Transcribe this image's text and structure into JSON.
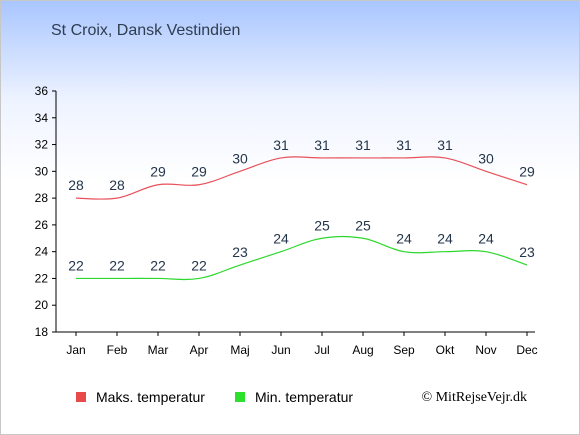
{
  "page": {
    "title": "St Croix, Dansk Vestindien",
    "credit": "© MitRejseVejr.dk"
  },
  "colors": {
    "max_line": "#e8505a",
    "min_line": "#2cd82c",
    "max_swatch": "#e84a4a",
    "min_swatch": "#2ee02e",
    "label_text": "#24364b",
    "axis": "#000000"
  },
  "chart_data": {
    "type": "line",
    "title": "St Croix, Dansk Vestindien",
    "xlabel": "",
    "ylabel": "",
    "categories": [
      "Jan",
      "Feb",
      "Mar",
      "Apr",
      "Maj",
      "Jun",
      "Jul",
      "Aug",
      "Sep",
      "Okt",
      "Nov",
      "Dec"
    ],
    "ylim": [
      18,
      36
    ],
    "yticks": [
      18,
      20,
      22,
      24,
      26,
      28,
      30,
      32,
      34,
      36
    ],
    "grid": false,
    "legend_position": "bottom",
    "series": [
      {
        "name": "Maks. temperatur",
        "values": [
          28,
          28,
          29,
          29,
          30,
          31,
          31,
          31,
          31,
          31,
          30,
          29
        ]
      },
      {
        "name": "Min. temperatur",
        "values": [
          22,
          22,
          22,
          22,
          23,
          24,
          25,
          25,
          24,
          24,
          24,
          23
        ]
      }
    ]
  }
}
